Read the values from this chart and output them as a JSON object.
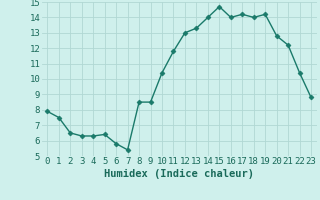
{
  "x": [
    0,
    1,
    2,
    3,
    4,
    5,
    6,
    7,
    8,
    9,
    10,
    11,
    12,
    13,
    14,
    15,
    16,
    17,
    18,
    19,
    20,
    21,
    22,
    23
  ],
  "y": [
    7.9,
    7.5,
    6.5,
    6.3,
    6.3,
    6.4,
    5.8,
    5.4,
    8.5,
    8.5,
    10.4,
    11.8,
    13.0,
    13.3,
    14.0,
    14.7,
    14.0,
    14.2,
    14.0,
    14.2,
    12.8,
    12.2,
    10.4,
    8.8
  ],
  "line_color": "#1a7a6a",
  "marker": "D",
  "marker_size": 2.5,
  "bg_color": "#cff0ec",
  "grid_color": "#b0d8d4",
  "xlabel": "Humidex (Indice chaleur)",
  "xlim": [
    -0.5,
    23.5
  ],
  "ylim": [
    5,
    15
  ],
  "xticks": [
    0,
    1,
    2,
    3,
    4,
    5,
    6,
    7,
    8,
    9,
    10,
    11,
    12,
    13,
    14,
    15,
    16,
    17,
    18,
    19,
    20,
    21,
    22,
    23
  ],
  "yticks": [
    5,
    6,
    7,
    8,
    9,
    10,
    11,
    12,
    13,
    14,
    15
  ],
  "tick_label_color": "#1a6a5a",
  "xlabel_color": "#1a6a5a",
  "xlabel_fontsize": 7.5,
  "tick_fontsize": 6.5
}
